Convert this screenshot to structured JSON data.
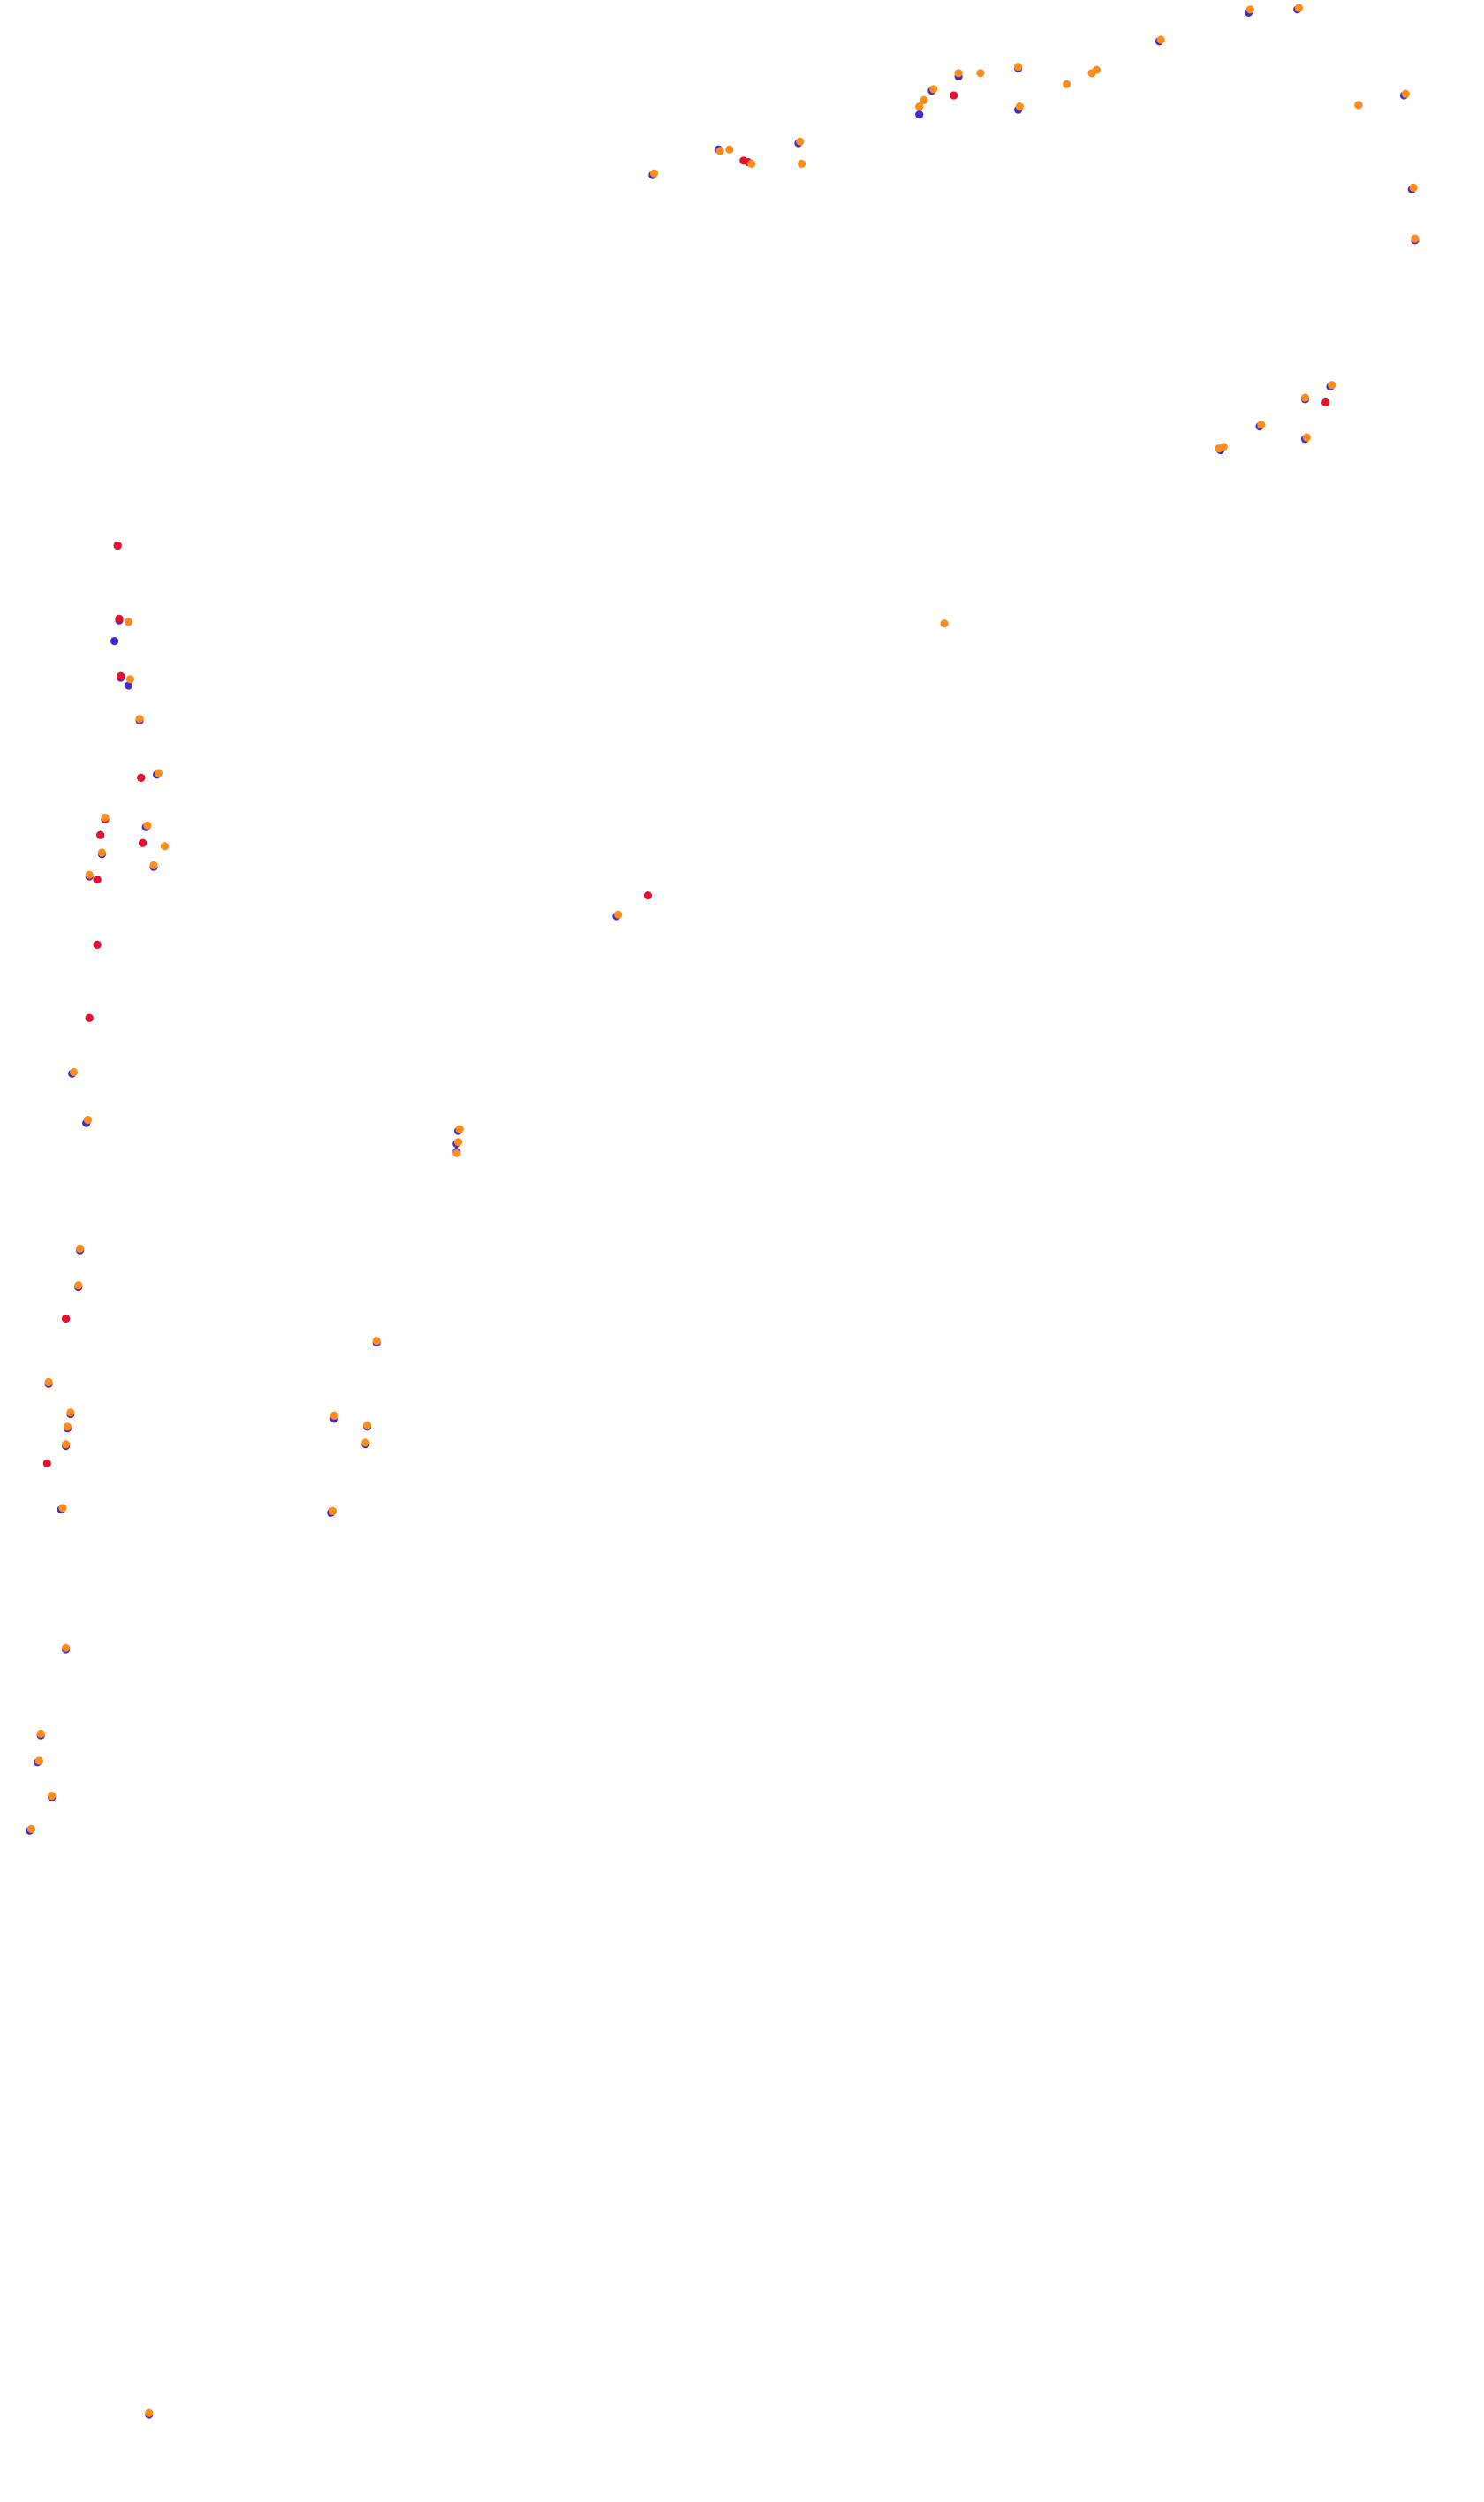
{
  "chart_data": {
    "type": "scatter",
    "xlim": [
      0,
      946
    ],
    "ylim": [
      0,
      1573
    ],
    "y_direction": "down",
    "grid": false,
    "axes_visible": false,
    "legend": "none",
    "marker_colors": {
      "blue": "#3b2bd6",
      "red": "#e8102a",
      "orange": "#ff8c1a"
    },
    "series": [
      {
        "color": "blue",
        "points": [
          [
            796,
            8
          ],
          [
            827,
            6
          ],
          [
            739,
            26
          ],
          [
            649,
            43
          ],
          [
            611,
            48
          ],
          [
            594,
            57
          ],
          [
            586,
            72
          ],
          [
            649,
            69
          ],
          [
            458,
            94
          ],
          [
            509,
            90
          ],
          [
            416,
            110
          ],
          [
            866,
            66
          ],
          [
            895,
            60
          ],
          [
            900,
            119
          ],
          [
            902,
            151
          ],
          [
            848,
            243
          ],
          [
            832,
            251
          ],
          [
            803,
            268
          ],
          [
            832,
            276
          ],
          [
            778,
            283
          ],
          [
            75,
            343
          ],
          [
            76,
            390
          ],
          [
            73,
            403
          ],
          [
            77,
            426
          ],
          [
            82,
            431
          ],
          [
            89,
            453
          ],
          [
            90,
            489
          ],
          [
            100,
            487
          ],
          [
            67,
            515
          ],
          [
            64,
            525
          ],
          [
            93,
            520
          ],
          [
            91,
            530
          ],
          [
            98,
            545
          ],
          [
            65,
            537
          ],
          [
            62,
            553
          ],
          [
            57,
            551
          ],
          [
            62,
            594
          ],
          [
            57,
            640
          ],
          [
            46,
            675
          ],
          [
            55,
            706
          ],
          [
            393,
            576
          ],
          [
            292,
            711
          ],
          [
            291,
            719
          ],
          [
            291,
            724
          ],
          [
            51,
            786
          ],
          [
            50,
            809
          ],
          [
            42,
            829
          ],
          [
            31,
            870
          ],
          [
            45,
            889
          ],
          [
            43,
            898
          ],
          [
            42,
            909
          ],
          [
            39,
            949
          ],
          [
            240,
            844
          ],
          [
            213,
            892
          ],
          [
            234,
            897
          ],
          [
            233,
            908
          ],
          [
            211,
            951
          ],
          [
            42,
            1037
          ],
          [
            26,
            1091
          ],
          [
            24,
            1108
          ],
          [
            33,
            1130
          ],
          [
            19,
            1151
          ],
          [
            95,
            1518
          ]
        ]
      },
      {
        "color": "red",
        "points": [
          [
            608,
            60
          ],
          [
            474,
            101
          ],
          [
            477,
            102
          ],
          [
            845,
            253
          ],
          [
            75,
            343
          ],
          [
            76,
            389
          ],
          [
            77,
            425
          ],
          [
            90,
            489
          ],
          [
            67,
            515
          ],
          [
            64,
            525
          ],
          [
            91,
            530
          ],
          [
            62,
            553
          ],
          [
            62,
            594
          ],
          [
            57,
            640
          ],
          [
            413,
            563
          ],
          [
            42,
            829
          ],
          [
            30,
            920
          ]
        ]
      },
      {
        "color": "orange",
        "points": [
          [
            797,
            6
          ],
          [
            828,
            5
          ],
          [
            740,
            25
          ],
          [
            649,
            42
          ],
          [
            611,
            46
          ],
          [
            625,
            46
          ],
          [
            595,
            56
          ],
          [
            589,
            63
          ],
          [
            586,
            67
          ],
          [
            650,
            67
          ],
          [
            680,
            53
          ],
          [
            696,
            46
          ],
          [
            699,
            44
          ],
          [
            459,
            95
          ],
          [
            465,
            94
          ],
          [
            479,
            103
          ],
          [
            510,
            89
          ],
          [
            511,
            103
          ],
          [
            417,
            109
          ],
          [
            866,
            66
          ],
          [
            896,
            59
          ],
          [
            901,
            118
          ],
          [
            902,
            150
          ],
          [
            849,
            242
          ],
          [
            832,
            250
          ],
          [
            804,
            267
          ],
          [
            833,
            275
          ],
          [
            777,
            282
          ],
          [
            780,
            281
          ],
          [
            602,
            392
          ],
          [
            82,
            391
          ],
          [
            83,
            427
          ],
          [
            89,
            452
          ],
          [
            101,
            486
          ],
          [
            67,
            514
          ],
          [
            94,
            519
          ],
          [
            105,
            532
          ],
          [
            98,
            544
          ],
          [
            65,
            536
          ],
          [
            57,
            550
          ],
          [
            47,
            674
          ],
          [
            56,
            704
          ],
          [
            394,
            575
          ],
          [
            293,
            710
          ],
          [
            292,
            718
          ],
          [
            291,
            725
          ],
          [
            51,
            785
          ],
          [
            50,
            808
          ],
          [
            31,
            869
          ],
          [
            45,
            888
          ],
          [
            43,
            897
          ],
          [
            42,
            908
          ],
          [
            40,
            948
          ],
          [
            240,
            843
          ],
          [
            213,
            890
          ],
          [
            234,
            896
          ],
          [
            233,
            907
          ],
          [
            212,
            950
          ],
          [
            42,
            1036
          ],
          [
            26,
            1090
          ],
          [
            25,
            1107
          ],
          [
            33,
            1129
          ],
          [
            20,
            1150
          ],
          [
            95,
            1517
          ]
        ]
      }
    ]
  }
}
